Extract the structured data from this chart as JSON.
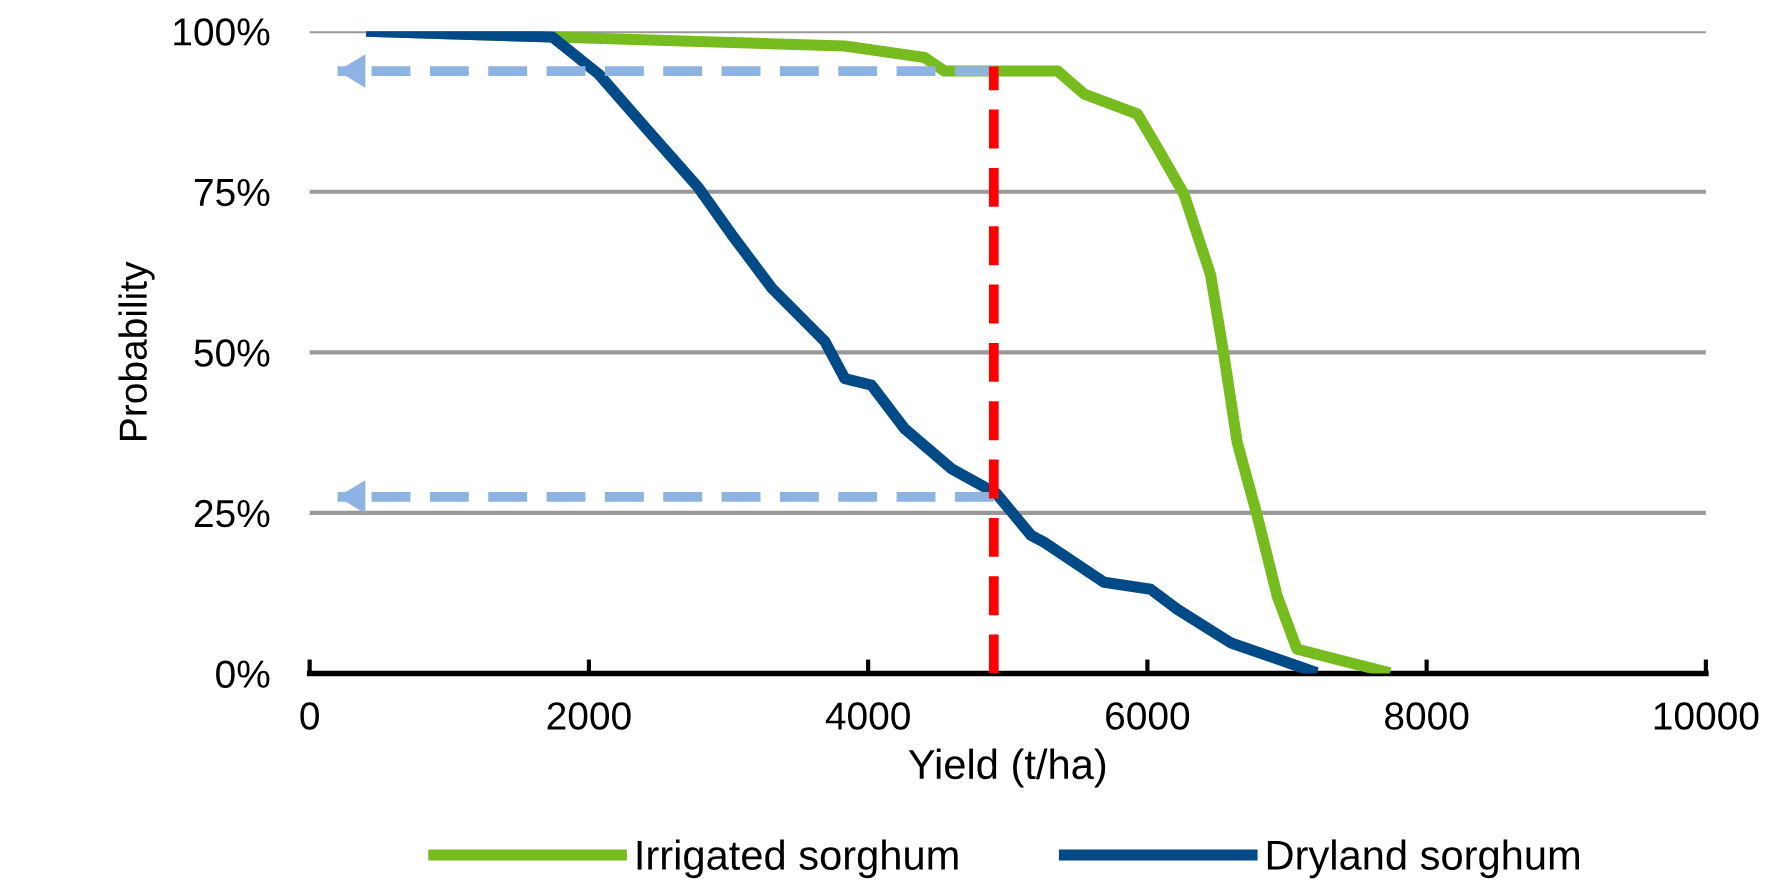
{
  "chart_data": {
    "type": "line",
    "xlabel": "Yield (t/ha)",
    "ylabel": "Probability",
    "xlim": [
      0,
      10000
    ],
    "xticks": [
      0,
      2000,
      4000,
      6000,
      8000,
      10000
    ],
    "ylim": [
      0,
      100
    ],
    "yticks": [
      {
        "value": 0,
        "label": "0%"
      },
      {
        "value": 25,
        "label": "25%"
      },
      {
        "value": 50,
        "label": "50%"
      },
      {
        "value": 75,
        "label": "75%"
      },
      {
        "value": 100,
        "label": "100%"
      }
    ],
    "grid": "y",
    "legend": "bottom",
    "line_style": "solid",
    "series": [
      {
        "name": "Irrigated sorghum",
        "color": "#77bc1f",
        "x": [
          405,
          1738,
          3833,
          4405,
          4548,
          5357,
          5548,
          5929,
          6071,
          6262,
          6452,
          6548,
          6643,
          6786,
          6929,
          7071,
          7357,
          7738
        ],
        "values": [
          100,
          99.1,
          97.7,
          95.9,
          93.8,
          93.8,
          90.2,
          87.1,
          81.9,
          74.6,
          62.1,
          49.6,
          36,
          24.6,
          12.1,
          3.8,
          2.2,
          0.1
        ]
      },
      {
        "name": "Dryland sorghum",
        "color": "#004b87",
        "x": [
          405,
          1738,
          2071,
          2405,
          2786,
          3024,
          3310,
          3690,
          3833,
          4024,
          4262,
          4595,
          4919,
          5167,
          5262,
          5690,
          6024,
          6214,
          6595,
          7214
        ],
        "values": [
          100,
          99.1,
          93.3,
          85,
          75.6,
          68.3,
          60,
          51.7,
          45.9,
          44.9,
          38.1,
          31.9,
          28,
          21.5,
          20.4,
          14.2,
          13.1,
          10,
          4.8,
          0.1
        ]
      },
      {
        "color": "#8db3e2",
        "line_style": "dashed",
        "x": [
          4900,
          200
        ],
        "values": [
          93.8,
          93.8
        ]
      },
      {
        "color": "#8db3e2",
        "line_style": "dashed",
        "x": [
          4900,
          200
        ],
        "values": [
          27.5,
          27.5
        ]
      },
      {
        "color": "#ff0000",
        "line_style": "dashed",
        "x": [
          4900,
          4900
        ],
        "values": [
          0,
          94.5
        ]
      }
    ]
  }
}
